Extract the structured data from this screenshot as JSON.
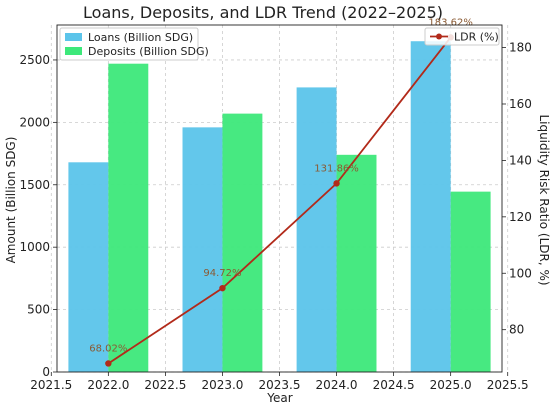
{
  "chart_data": {
    "type": "bar",
    "title": "Loans, Deposits, and LDR Trend (2022–2025)",
    "xlabel": "Year",
    "ylabel_left": "Amount (Billion SDG)",
    "ylabel_right": "Liquidity Risk Ratio (LDR, %)",
    "x": [
      2022.0,
      2023.0,
      2024.0,
      2025.0
    ],
    "xlim": [
      2021.55,
      2025.45
    ],
    "xticks": [
      "2021.5",
      "2022.0",
      "2022.5",
      "2023.0",
      "2023.5",
      "2024.0",
      "2024.5",
      "2025.0",
      "2025.5"
    ],
    "ylim_left": [
      0,
      2780
    ],
    "yticks_left": [
      "0",
      "500",
      "1000",
      "1500",
      "2000",
      "2500"
    ],
    "ylim_right": [
      65,
      188
    ],
    "yticks_right": [
      "80",
      "100",
      "120",
      "140",
      "160",
      "180"
    ],
    "grid": true,
    "legend_left_placement": "top-left",
    "legend_right_placement": "top-right",
    "series": [
      {
        "name": "Loans (Billion SDG)",
        "axis": "left",
        "kind": "bar",
        "color": "#5bc4ea",
        "values": [
          1680,
          1960,
          2280,
          2650
        ]
      },
      {
        "name": "Deposits (Billion SDG)",
        "axis": "left",
        "kind": "bar",
        "color": "#3de87a",
        "values": [
          2470,
          2070,
          1740,
          1445
        ]
      },
      {
        "name": "LDR (%)",
        "axis": "right",
        "kind": "line",
        "color": "#b22a1a",
        "values": [
          68.02,
          94.72,
          131.86,
          183.62
        ],
        "labels": [
          "68.02%",
          "94.72%",
          "131.86%",
          "183.62%"
        ]
      }
    ]
  }
}
